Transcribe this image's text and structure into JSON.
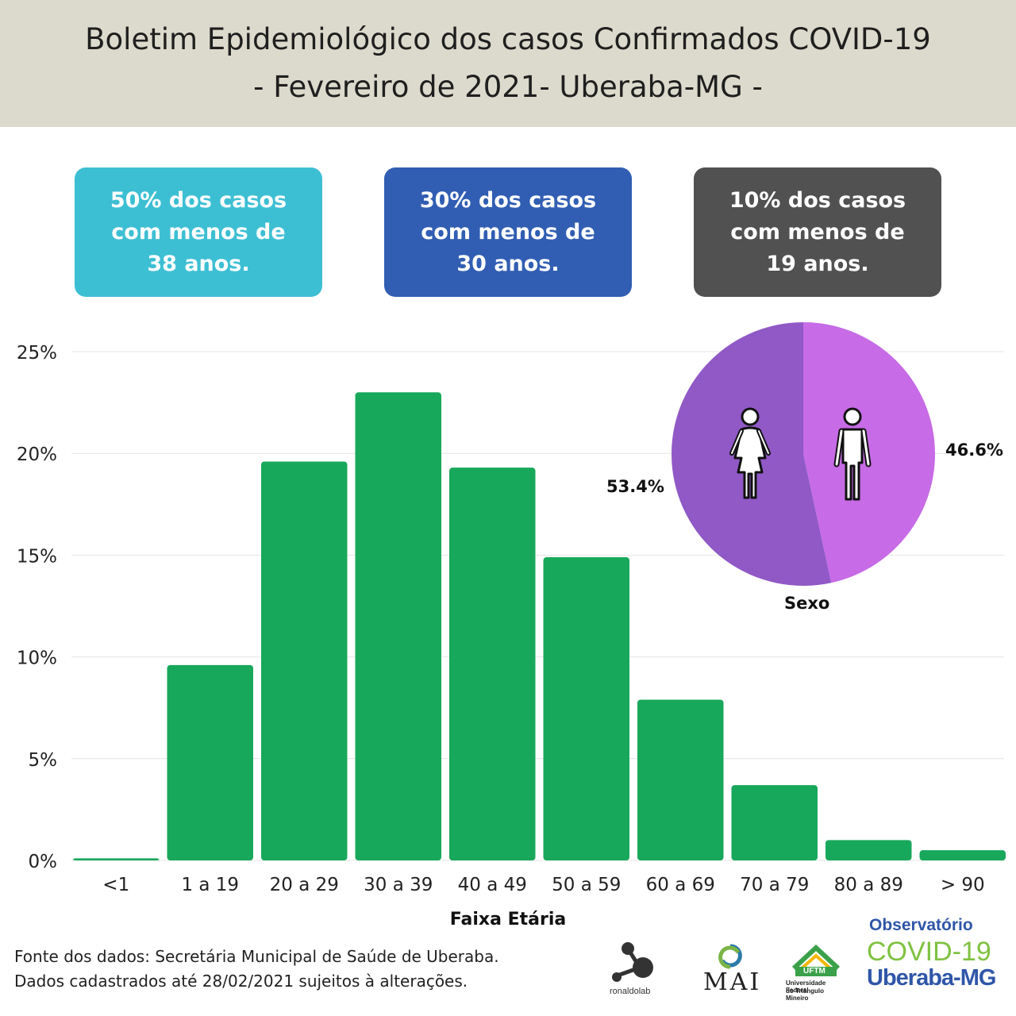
{
  "header": {
    "line1": "Boletim Epidemiológico dos casos Confirmados COVID-19",
    "line2": "- Fevereiro de 2021- Uberaba-MG -"
  },
  "stats": [
    {
      "l1": "50% dos casos",
      "l2": "com menos de",
      "l3": "38 anos.",
      "color": "#3dbfd3"
    },
    {
      "l1": "30% dos casos",
      "l2": "com menos de",
      "l3": "30 anos.",
      "color": "#315eb3"
    },
    {
      "l1": "10% dos casos",
      "l2": "com menos de",
      "l3": "19 anos.",
      "color": "#515151"
    }
  ],
  "chart_data": [
    {
      "type": "bar",
      "xlabel": "Faixa Etária",
      "ylabel": "",
      "ylim": [
        0,
        25
      ],
      "yticks": [
        "0%",
        "5%",
        "10%",
        "15%",
        "20%",
        "25%"
      ],
      "ytick_values": [
        0,
        5,
        10,
        15,
        20,
        25
      ],
      "categories": [
        "<1",
        "1 a 19",
        "20 a 29",
        "30 a 39",
        "40 a 49",
        "50 a 59",
        "60 a 69",
        "70 a 79",
        "80 a 89",
        "> 90"
      ],
      "values": [
        0.1,
        9.6,
        19.6,
        23.0,
        19.3,
        14.9,
        7.9,
        3.7,
        1.0,
        0.5
      ],
      "color": "#18a85b"
    },
    {
      "type": "pie",
      "title": "Sexo",
      "slices": [
        {
          "name": "Feminino",
          "value": 53.4,
          "label": "53.4%",
          "color": "#9059c6",
          "icon": "woman-icon"
        },
        {
          "name": "Masculino",
          "value": 46.6,
          "label": "46.6%",
          "color": "#c76be6",
          "icon": "man-icon"
        }
      ]
    }
  ],
  "footer": {
    "line1": "Fonte dos dados: Secretária Municipal de Saúde de Uberaba.",
    "line2": "Dados cadastrados até 28/02/2021 sujeitos à alterações."
  },
  "logos": {
    "ronaldolab": "ronaldolab",
    "mai": "MAI",
    "uftm": "UFTM",
    "uftm_caption1": "Universidade Federal",
    "uftm_caption2": "do Triângulo Mineiro",
    "obs_line1": "Observatório",
    "obs_line2": "COVID-19",
    "obs_line3": "Uberaba-MG"
  }
}
